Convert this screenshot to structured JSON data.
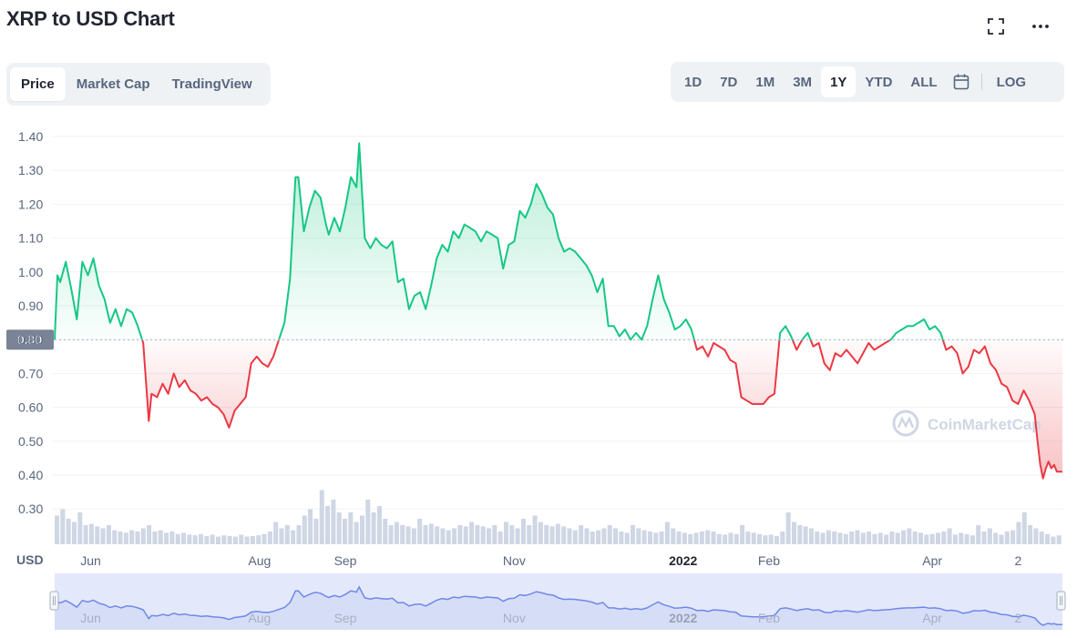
{
  "header": {
    "title": "XRP to USD Chart"
  },
  "tabs": [
    {
      "label": "Price",
      "active": true
    },
    {
      "label": "Market Cap",
      "active": false
    },
    {
      "label": "TradingView",
      "active": false
    }
  ],
  "ranges": [
    {
      "label": "1D",
      "active": false
    },
    {
      "label": "7D",
      "active": false
    },
    {
      "label": "1M",
      "active": false
    },
    {
      "label": "3M",
      "active": false
    },
    {
      "label": "1Y",
      "active": true
    },
    {
      "label": "YTD",
      "active": false
    },
    {
      "label": "ALL",
      "active": false
    }
  ],
  "log_label": "LOG",
  "icons": {
    "fullscreen": "fullscreen-icon",
    "more": "more-dots-icon",
    "calendar": "calendar-icon"
  },
  "watermark": "CoinMarketCap",
  "colors": {
    "up": "#16c784",
    "down": "#ea3943",
    "navigator": "#6f88e8",
    "navigator_fill": "#e3e8fb"
  },
  "chart_data": {
    "type": "line",
    "unit_label": "USD",
    "ylim": [
      0.25,
      1.42
    ],
    "yticks": [
      0.3,
      0.4,
      0.5,
      0.6,
      0.7,
      0.8,
      0.9,
      1.0,
      1.1,
      1.2,
      1.3,
      1.4
    ],
    "reference_value": 0.8,
    "reference_label": "0.80",
    "xlim": [
      "2021-05-19",
      "2022-05-18"
    ],
    "xticks": [
      {
        "date": "2021-06-01",
        "label": "Jun",
        "bold": false
      },
      {
        "date": "2021-08-01",
        "label": "Aug",
        "bold": false
      },
      {
        "date": "2021-09-01",
        "label": "Sep",
        "bold": false
      },
      {
        "date": "2021-11-01",
        "label": "Nov",
        "bold": false
      },
      {
        "date": "2022-01-01",
        "label": "2022",
        "bold": true
      },
      {
        "date": "2022-02-01",
        "label": "Feb",
        "bold": false
      },
      {
        "date": "2022-04-01",
        "label": "Apr",
        "bold": false
      },
      {
        "date": "2022-05-02",
        "label": "2",
        "bold": false
      }
    ],
    "grid": true,
    "series": [
      {
        "values": [
          [
            "2021-05-19",
            0.8
          ],
          [
            "2021-05-20",
            0.99
          ],
          [
            "2021-05-21",
            0.97
          ],
          [
            "2021-05-23",
            1.03
          ],
          [
            "2021-05-25",
            0.95
          ],
          [
            "2021-05-27",
            0.86
          ],
          [
            "2021-05-29",
            1.03
          ],
          [
            "2021-05-31",
            0.99
          ],
          [
            "2021-06-02",
            1.04
          ],
          [
            "2021-06-04",
            0.96
          ],
          [
            "2021-06-06",
            0.92
          ],
          [
            "2021-06-08",
            0.85
          ],
          [
            "2021-06-10",
            0.89
          ],
          [
            "2021-06-12",
            0.84
          ],
          [
            "2021-06-14",
            0.89
          ],
          [
            "2021-06-16",
            0.88
          ],
          [
            "2021-06-18",
            0.84
          ],
          [
            "2021-06-20",
            0.79
          ],
          [
            "2021-06-22",
            0.56
          ],
          [
            "2021-06-23",
            0.64
          ],
          [
            "2021-06-25",
            0.63
          ],
          [
            "2021-06-27",
            0.67
          ],
          [
            "2021-06-29",
            0.64
          ],
          [
            "2021-07-01",
            0.7
          ],
          [
            "2021-07-03",
            0.66
          ],
          [
            "2021-07-05",
            0.68
          ],
          [
            "2021-07-07",
            0.65
          ],
          [
            "2021-07-09",
            0.64
          ],
          [
            "2021-07-11",
            0.62
          ],
          [
            "2021-07-13",
            0.63
          ],
          [
            "2021-07-15",
            0.61
          ],
          [
            "2021-07-17",
            0.6
          ],
          [
            "2021-07-19",
            0.58
          ],
          [
            "2021-07-21",
            0.54
          ],
          [
            "2021-07-23",
            0.59
          ],
          [
            "2021-07-25",
            0.61
          ],
          [
            "2021-07-27",
            0.63
          ],
          [
            "2021-07-29",
            0.73
          ],
          [
            "2021-07-31",
            0.75
          ],
          [
            "2021-08-02",
            0.73
          ],
          [
            "2021-08-04",
            0.72
          ],
          [
            "2021-08-06",
            0.75
          ],
          [
            "2021-08-08",
            0.8
          ],
          [
            "2021-08-10",
            0.85
          ],
          [
            "2021-08-12",
            0.98
          ],
          [
            "2021-08-14",
            1.28
          ],
          [
            "2021-08-15",
            1.28
          ],
          [
            "2021-08-17",
            1.12
          ],
          [
            "2021-08-19",
            1.19
          ],
          [
            "2021-08-21",
            1.24
          ],
          [
            "2021-08-23",
            1.22
          ],
          [
            "2021-08-25",
            1.14
          ],
          [
            "2021-08-26",
            1.11
          ],
          [
            "2021-08-28",
            1.16
          ],
          [
            "2021-08-30",
            1.12
          ],
          [
            "2021-09-01",
            1.19
          ],
          [
            "2021-09-03",
            1.28
          ],
          [
            "2021-09-05",
            1.25
          ],
          [
            "2021-09-06",
            1.38
          ],
          [
            "2021-09-08",
            1.1
          ],
          [
            "2021-09-10",
            1.07
          ],
          [
            "2021-09-12",
            1.1
          ],
          [
            "2021-09-14",
            1.08
          ],
          [
            "2021-09-16",
            1.07
          ],
          [
            "2021-09-18",
            1.09
          ],
          [
            "2021-09-20",
            0.97
          ],
          [
            "2021-09-22",
            0.98
          ],
          [
            "2021-09-24",
            0.89
          ],
          [
            "2021-09-26",
            0.93
          ],
          [
            "2021-09-28",
            0.94
          ],
          [
            "2021-09-30",
            0.89
          ],
          [
            "2021-10-02",
            0.96
          ],
          [
            "2021-10-04",
            1.04
          ],
          [
            "2021-10-06",
            1.08
          ],
          [
            "2021-10-08",
            1.06
          ],
          [
            "2021-10-10",
            1.12
          ],
          [
            "2021-10-12",
            1.1
          ],
          [
            "2021-10-14",
            1.14
          ],
          [
            "2021-10-16",
            1.13
          ],
          [
            "2021-10-18",
            1.12
          ],
          [
            "2021-10-20",
            1.09
          ],
          [
            "2021-10-22",
            1.12
          ],
          [
            "2021-10-24",
            1.11
          ],
          [
            "2021-10-26",
            1.1
          ],
          [
            "2021-10-28",
            1.01
          ],
          [
            "2021-10-30",
            1.08
          ],
          [
            "2021-11-01",
            1.09
          ],
          [
            "2021-11-03",
            1.18
          ],
          [
            "2021-11-05",
            1.16
          ],
          [
            "2021-11-07",
            1.2
          ],
          [
            "2021-11-09",
            1.26
          ],
          [
            "2021-11-11",
            1.23
          ],
          [
            "2021-11-13",
            1.19
          ],
          [
            "2021-11-15",
            1.17
          ],
          [
            "2021-11-17",
            1.1
          ],
          [
            "2021-11-19",
            1.06
          ],
          [
            "2021-11-21",
            1.07
          ],
          [
            "2021-11-23",
            1.06
          ],
          [
            "2021-11-25",
            1.04
          ],
          [
            "2021-11-27",
            1.02
          ],
          [
            "2021-11-29",
            0.99
          ],
          [
            "2021-12-01",
            0.94
          ],
          [
            "2021-12-03",
            0.98
          ],
          [
            "2021-12-05",
            0.84
          ],
          [
            "2021-12-07",
            0.84
          ],
          [
            "2021-12-09",
            0.81
          ],
          [
            "2021-12-11",
            0.83
          ],
          [
            "2021-12-13",
            0.8
          ],
          [
            "2021-12-15",
            0.82
          ],
          [
            "2021-12-17",
            0.8
          ],
          [
            "2021-12-19",
            0.84
          ],
          [
            "2021-12-21",
            0.92
          ],
          [
            "2021-12-23",
            0.99
          ],
          [
            "2021-12-25",
            0.92
          ],
          [
            "2021-12-27",
            0.88
          ],
          [
            "2021-12-29",
            0.83
          ],
          [
            "2021-12-31",
            0.84
          ],
          [
            "2022-01-02",
            0.86
          ],
          [
            "2022-01-04",
            0.83
          ],
          [
            "2022-01-06",
            0.77
          ],
          [
            "2022-01-08",
            0.78
          ],
          [
            "2022-01-10",
            0.75
          ],
          [
            "2022-01-12",
            0.79
          ],
          [
            "2022-01-14",
            0.78
          ],
          [
            "2022-01-16",
            0.77
          ],
          [
            "2022-01-18",
            0.74
          ],
          [
            "2022-01-20",
            0.73
          ],
          [
            "2022-01-22",
            0.63
          ],
          [
            "2022-01-24",
            0.62
          ],
          [
            "2022-01-26",
            0.61
          ],
          [
            "2022-01-28",
            0.61
          ],
          [
            "2022-01-30",
            0.61
          ],
          [
            "2022-02-01",
            0.63
          ],
          [
            "2022-02-03",
            0.64
          ],
          [
            "2022-02-05",
            0.82
          ],
          [
            "2022-02-07",
            0.84
          ],
          [
            "2022-02-09",
            0.81
          ],
          [
            "2022-02-11",
            0.77
          ],
          [
            "2022-02-13",
            0.8
          ],
          [
            "2022-02-15",
            0.82
          ],
          [
            "2022-02-17",
            0.78
          ],
          [
            "2022-02-19",
            0.79
          ],
          [
            "2022-02-21",
            0.73
          ],
          [
            "2022-02-23",
            0.71
          ],
          [
            "2022-02-25",
            0.76
          ],
          [
            "2022-02-27",
            0.75
          ],
          [
            "2022-03-01",
            0.77
          ],
          [
            "2022-03-03",
            0.75
          ],
          [
            "2022-03-05",
            0.73
          ],
          [
            "2022-03-07",
            0.76
          ],
          [
            "2022-03-09",
            0.79
          ],
          [
            "2022-03-11",
            0.77
          ],
          [
            "2022-03-13",
            0.78
          ],
          [
            "2022-03-15",
            0.79
          ],
          [
            "2022-03-17",
            0.8
          ],
          [
            "2022-03-19",
            0.82
          ],
          [
            "2022-03-21",
            0.83
          ],
          [
            "2022-03-23",
            0.84
          ],
          [
            "2022-03-25",
            0.84
          ],
          [
            "2022-03-27",
            0.85
          ],
          [
            "2022-03-29",
            0.86
          ],
          [
            "2022-03-31",
            0.83
          ],
          [
            "2022-04-02",
            0.84
          ],
          [
            "2022-04-04",
            0.82
          ],
          [
            "2022-04-06",
            0.77
          ],
          [
            "2022-04-08",
            0.78
          ],
          [
            "2022-04-10",
            0.76
          ],
          [
            "2022-04-12",
            0.7
          ],
          [
            "2022-04-14",
            0.72
          ],
          [
            "2022-04-16",
            0.77
          ],
          [
            "2022-04-18",
            0.76
          ],
          [
            "2022-04-20",
            0.78
          ],
          [
            "2022-04-22",
            0.73
          ],
          [
            "2022-04-24",
            0.71
          ],
          [
            "2022-04-26",
            0.67
          ],
          [
            "2022-04-28",
            0.66
          ],
          [
            "2022-04-30",
            0.62
          ],
          [
            "2022-05-02",
            0.61
          ],
          [
            "2022-05-04",
            0.65
          ],
          [
            "2022-05-06",
            0.62
          ],
          [
            "2022-05-08",
            0.58
          ],
          [
            "2022-05-09",
            0.5
          ],
          [
            "2022-05-10",
            0.43
          ],
          [
            "2022-05-11",
            0.39
          ],
          [
            "2022-05-12",
            0.42
          ],
          [
            "2022-05-13",
            0.44
          ],
          [
            "2022-05-14",
            0.42
          ],
          [
            "2022-05-15",
            0.43
          ],
          [
            "2022-05-16",
            0.41
          ],
          [
            "2022-05-18",
            0.41
          ]
        ]
      }
    ],
    "volume": [
      0.45,
      0.55,
      0.4,
      0.35,
      0.5,
      0.3,
      0.32,
      0.28,
      0.25,
      0.3,
      0.22,
      0.2,
      0.18,
      0.22,
      0.2,
      0.25,
      0.3,
      0.2,
      0.22,
      0.18,
      0.2,
      0.16,
      0.18,
      0.15,
      0.14,
      0.16,
      0.13,
      0.15,
      0.12,
      0.14,
      0.13,
      0.12,
      0.15,
      0.12,
      0.13,
      0.14,
      0.16,
      0.2,
      0.35,
      0.25,
      0.3,
      0.22,
      0.3,
      0.45,
      0.55,
      0.4,
      0.85,
      0.6,
      0.7,
      0.5,
      0.4,
      0.5,
      0.35,
      0.45,
      0.7,
      0.5,
      0.6,
      0.4,
      0.3,
      0.35,
      0.3,
      0.28,
      0.25,
      0.4,
      0.3,
      0.32,
      0.28,
      0.25,
      0.22,
      0.25,
      0.3,
      0.28,
      0.35,
      0.3,
      0.28,
      0.25,
      0.3,
      0.2,
      0.35,
      0.3,
      0.25,
      0.4,
      0.3,
      0.45,
      0.35,
      0.3,
      0.28,
      0.32,
      0.28,
      0.25,
      0.22,
      0.3,
      0.25,
      0.2,
      0.22,
      0.25,
      0.3,
      0.25,
      0.2,
      0.18,
      0.3,
      0.25,
      0.22,
      0.2,
      0.18,
      0.2,
      0.35,
      0.25,
      0.2,
      0.18,
      0.16,
      0.18,
      0.2,
      0.22,
      0.2,
      0.16,
      0.15,
      0.18,
      0.16,
      0.3,
      0.2,
      0.18,
      0.16,
      0.14,
      0.15,
      0.13,
      0.2,
      0.5,
      0.35,
      0.3,
      0.28,
      0.25,
      0.2,
      0.18,
      0.22,
      0.2,
      0.18,
      0.16,
      0.2,
      0.22,
      0.18,
      0.2,
      0.16,
      0.18,
      0.15,
      0.2,
      0.18,
      0.22,
      0.25,
      0.2,
      0.18,
      0.15,
      0.16,
      0.18,
      0.2,
      0.25,
      0.15,
      0.18,
      0.16,
      0.14,
      0.3,
      0.2,
      0.25,
      0.18,
      0.15,
      0.2,
      0.22,
      0.35,
      0.5,
      0.3,
      0.25,
      0.2,
      0.16,
      0.12,
      0.14
    ],
    "navigator_xticks": [
      "Jun",
      "Aug",
      "Sep",
      "Nov",
      "2022",
      "Feb",
      "Apr",
      "2"
    ]
  }
}
